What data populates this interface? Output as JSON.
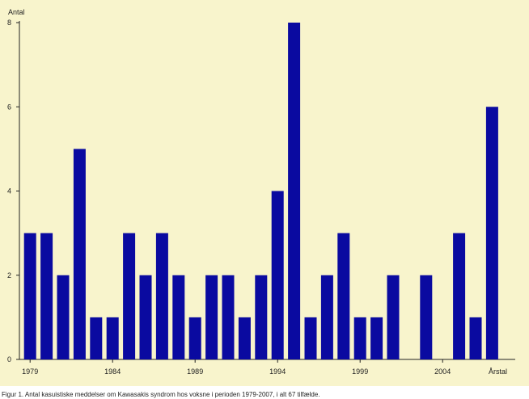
{
  "chart_data": {
    "type": "bar",
    "title": "",
    "ylabel": "Antal",
    "xlabel": "Årstal",
    "ylim": [
      0,
      8
    ],
    "yticks": [
      0,
      2,
      4,
      6,
      8
    ],
    "x_tick_labels": [
      "1979",
      "1984",
      "1989",
      "1994",
      "1999",
      "2004"
    ],
    "categories": [
      "1979",
      "1980",
      "1981",
      "1982",
      "1983",
      "1984",
      "1985",
      "1986",
      "1987",
      "1988",
      "1989",
      "1990",
      "1991",
      "1992",
      "1993",
      "1994",
      "1995",
      "1996",
      "1997",
      "1998",
      "1999",
      "2000",
      "2001",
      "2002",
      "2003",
      "2004",
      "2005",
      "2006",
      "2007"
    ],
    "values": [
      3,
      3,
      2,
      5,
      1,
      1,
      3,
      2,
      3,
      2,
      1,
      2,
      2,
      1,
      2,
      4,
      8,
      1,
      2,
      3,
      1,
      1,
      2,
      0,
      2,
      0,
      3,
      1,
      6
    ],
    "bar_color": "#0a0aa0",
    "background_color": "#f8f4cc",
    "grid": false
  },
  "caption": "Figur 1. Antal kasuistiske meddelser om Kawasakis syndrom hos voksne i perioden 1979-2007, i alt 67 tilfælde."
}
